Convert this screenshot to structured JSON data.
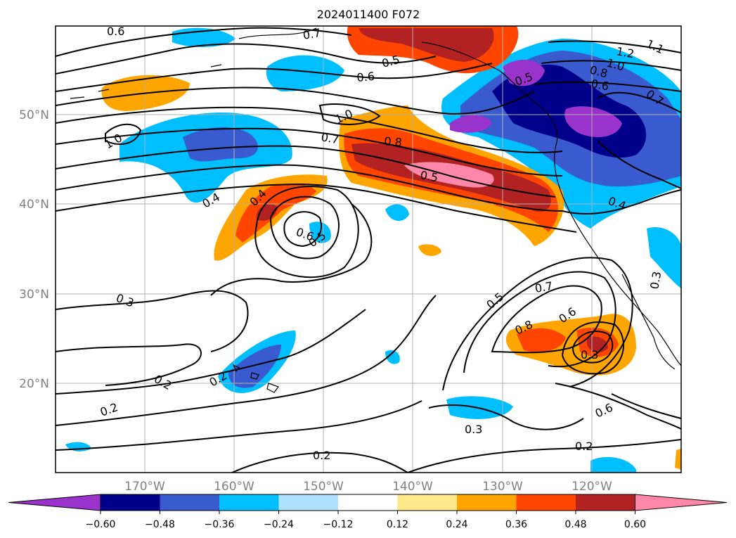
{
  "title": "2024011400 F072",
  "lon_ticks": [
    "170°W",
    "160°W",
    "150°W",
    "140°W",
    "130°W",
    "120°W"
  ],
  "lat_ticks": [
    "50°N",
    "40°N",
    "30°N",
    "20°N"
  ],
  "colorbar": {
    "ticks": [
      "−0.60",
      "−0.48",
      "−0.36",
      "−0.24",
      "−0.12",
      "0.12",
      "0.24",
      "0.36",
      "0.48",
      "0.60"
    ],
    "colors": [
      "#9933cc",
      "#00008b",
      "#3a5bd0",
      "#00bfff",
      "#b0e2ff",
      "#ffffff",
      "#ffe88a",
      "#ffa500",
      "#ff4500",
      "#b22222",
      "#ff88aa"
    ]
  },
  "contour_labels": [
    {
      "text": "0.6"
    },
    {
      "text": "0.7"
    },
    {
      "text": "0.5"
    },
    {
      "text": "0.6"
    },
    {
      "text": "1.2"
    },
    {
      "text": "1.1"
    },
    {
      "text": "1.0"
    },
    {
      "text": "0.8"
    },
    {
      "text": "0.6"
    },
    {
      "text": "0.5"
    },
    {
      "text": "0.7"
    },
    {
      "text": "1.0"
    },
    {
      "text": "1.0"
    },
    {
      "text": "0.7"
    },
    {
      "text": "0.8"
    },
    {
      "text": "0.5"
    },
    {
      "text": "0.4"
    },
    {
      "text": "0.4"
    },
    {
      "text": "0.6"
    },
    {
      "text": "0.5"
    },
    {
      "text": "0.4"
    },
    {
      "text": "0.3"
    },
    {
      "text": "0.3"
    },
    {
      "text": "0.5"
    },
    {
      "text": "0.7"
    },
    {
      "text": "0.8"
    },
    {
      "text": "0.6"
    },
    {
      "text": "0.3"
    },
    {
      "text": "0.2"
    },
    {
      "text": "0.2"
    },
    {
      "text": "0.2"
    },
    {
      "text": "0.3"
    },
    {
      "text": "0.6"
    },
    {
      "text": "0.2"
    },
    {
      "text": "0.2"
    }
  ]
}
